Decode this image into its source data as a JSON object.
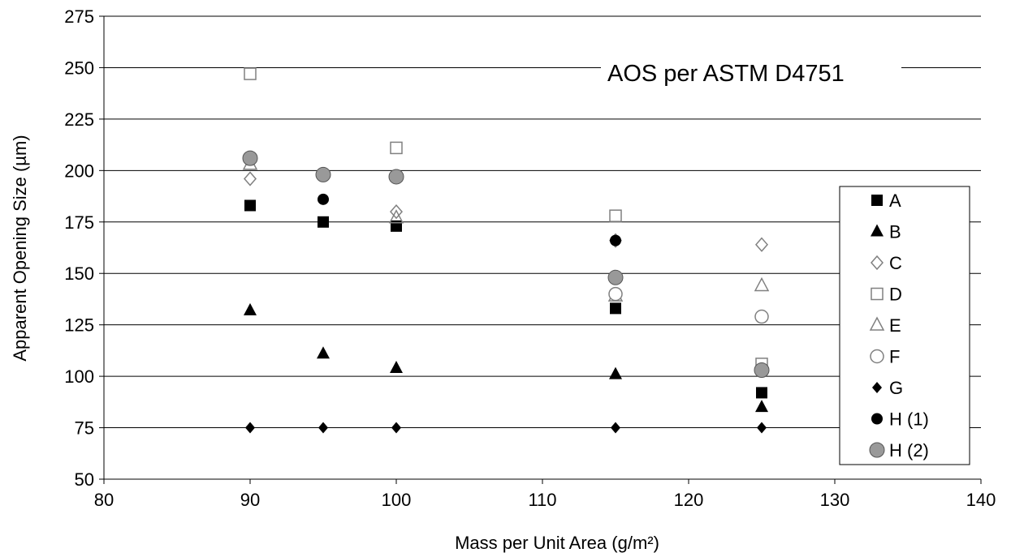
{
  "chart_data": {
    "type": "scatter",
    "title": "",
    "annotation": "AOS per ASTM D4751",
    "xlabel": "Mass per Unit Area (g/m²)",
    "ylabel": "Apparent Opening Size (µm)",
    "xlim": [
      80,
      140
    ],
    "ylim": [
      50,
      275
    ],
    "xticks": [
      80,
      90,
      100,
      110,
      120,
      130,
      140
    ],
    "yticks": [
      50,
      75,
      100,
      125,
      150,
      175,
      200,
      225,
      250,
      275
    ],
    "grid": "horizontal",
    "legend_position": "right",
    "series": [
      {
        "name": "A",
        "marker": "square-filled",
        "color": "#000000",
        "points": [
          [
            90,
            183
          ],
          [
            95,
            175
          ],
          [
            100,
            173
          ],
          [
            115,
            133
          ],
          [
            125,
            92
          ]
        ]
      },
      {
        "name": "B",
        "marker": "triangle-filled",
        "color": "#000000",
        "points": [
          [
            90,
            132
          ],
          [
            95,
            111
          ],
          [
            100,
            104
          ],
          [
            115,
            101
          ],
          [
            125,
            85
          ]
        ]
      },
      {
        "name": "C",
        "marker": "diamond-open",
        "color": "#808080",
        "points": [
          [
            90,
            196
          ],
          [
            100,
            180
          ],
          [
            115,
            166
          ],
          [
            125,
            164
          ]
        ]
      },
      {
        "name": "D",
        "marker": "square-open",
        "color": "#808080",
        "points": [
          [
            90,
            247
          ],
          [
            100,
            211
          ],
          [
            115,
            178
          ],
          [
            125,
            106
          ]
        ]
      },
      {
        "name": "E",
        "marker": "triangle-open",
        "color": "#808080",
        "points": [
          [
            90,
            203
          ],
          [
            100,
            177
          ],
          [
            115,
            139
          ],
          [
            125,
            144
          ]
        ]
      },
      {
        "name": "F",
        "marker": "circle-open",
        "color": "#808080",
        "points": [
          [
            115,
            140
          ],
          [
            125,
            129
          ]
        ]
      },
      {
        "name": "G",
        "marker": "diamond-filled",
        "color": "#000000",
        "points": [
          [
            90,
            75
          ],
          [
            95,
            75
          ],
          [
            100,
            75
          ],
          [
            115,
            75
          ],
          [
            125,
            75
          ]
        ]
      },
      {
        "name": "H (1)",
        "marker": "circle-filled",
        "color": "#000000",
        "points": [
          [
            95,
            186
          ],
          [
            115,
            166
          ]
        ]
      },
      {
        "name": "H (2)",
        "marker": "circle-gray",
        "color": "#808080",
        "points": [
          [
            90,
            206
          ],
          [
            95,
            198
          ],
          [
            100,
            197
          ],
          [
            115,
            148
          ],
          [
            125,
            103
          ]
        ]
      }
    ]
  }
}
